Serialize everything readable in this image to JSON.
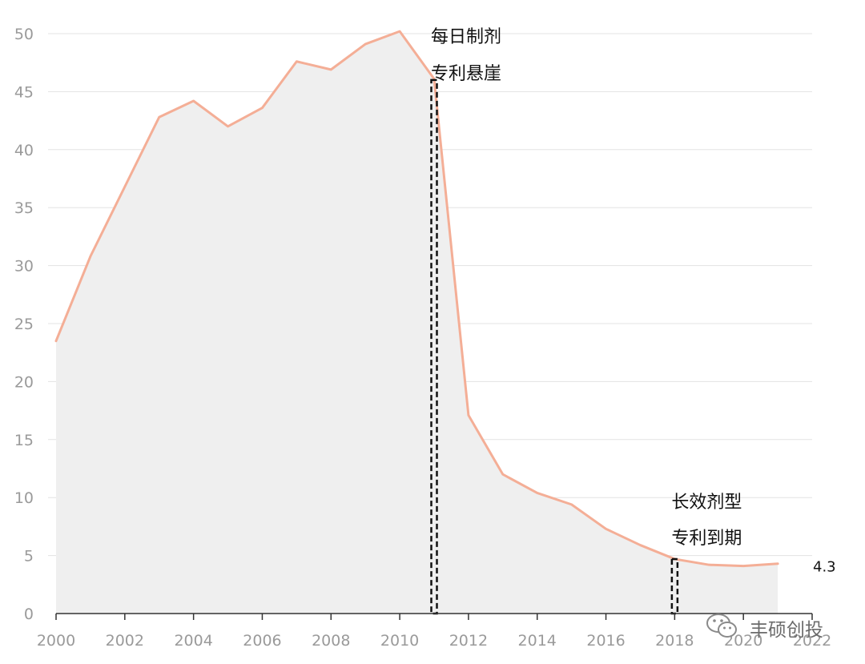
{
  "chart_data": {
    "type": "area",
    "x": [
      2000,
      2001,
      2002,
      2003,
      2004,
      2005,
      2006,
      2007,
      2008,
      2009,
      2010,
      2011,
      2012,
      2013,
      2014,
      2015,
      2016,
      2017,
      2018,
      2019,
      2020,
      2021
    ],
    "series": [
      {
        "values": [
          23.5,
          30.8,
          36.8,
          42.8,
          44.2,
          42.0,
          43.6,
          47.6,
          46.9,
          49.1,
          50.2,
          46.1,
          17.1,
          12.0,
          10.4,
          9.4,
          7.3,
          5.9,
          4.7,
          4.2,
          4.1,
          4.3
        ],
        "color": "#f4ae96"
      }
    ],
    "fill_color": "#efefef",
    "xlim": [
      2000,
      2022
    ],
    "ylim": [
      0,
      50
    ],
    "xticks": [
      "2000",
      "2002",
      "2004",
      "2006",
      "2008",
      "2010",
      "2012",
      "2014",
      "2016",
      "2018",
      "2020",
      "2022"
    ],
    "yticks": [
      "0",
      "5",
      "10",
      "15",
      "20",
      "25",
      "30",
      "35",
      "40",
      "45",
      "50"
    ],
    "grid": "horizontal",
    "title": "",
    "xlabel": "",
    "ylabel": "",
    "end_label": "4.3",
    "annotations": [
      {
        "x": 2011,
        "top_value": 46,
        "line1": "每日制剂",
        "line2": "专利悬崖"
      },
      {
        "x": 2018,
        "top_value": 4.7,
        "line1": "长效剂型",
        "line2": "专利到期"
      }
    ]
  },
  "watermark": {
    "icon": "wechat-icon",
    "text": "丰硕创投"
  }
}
